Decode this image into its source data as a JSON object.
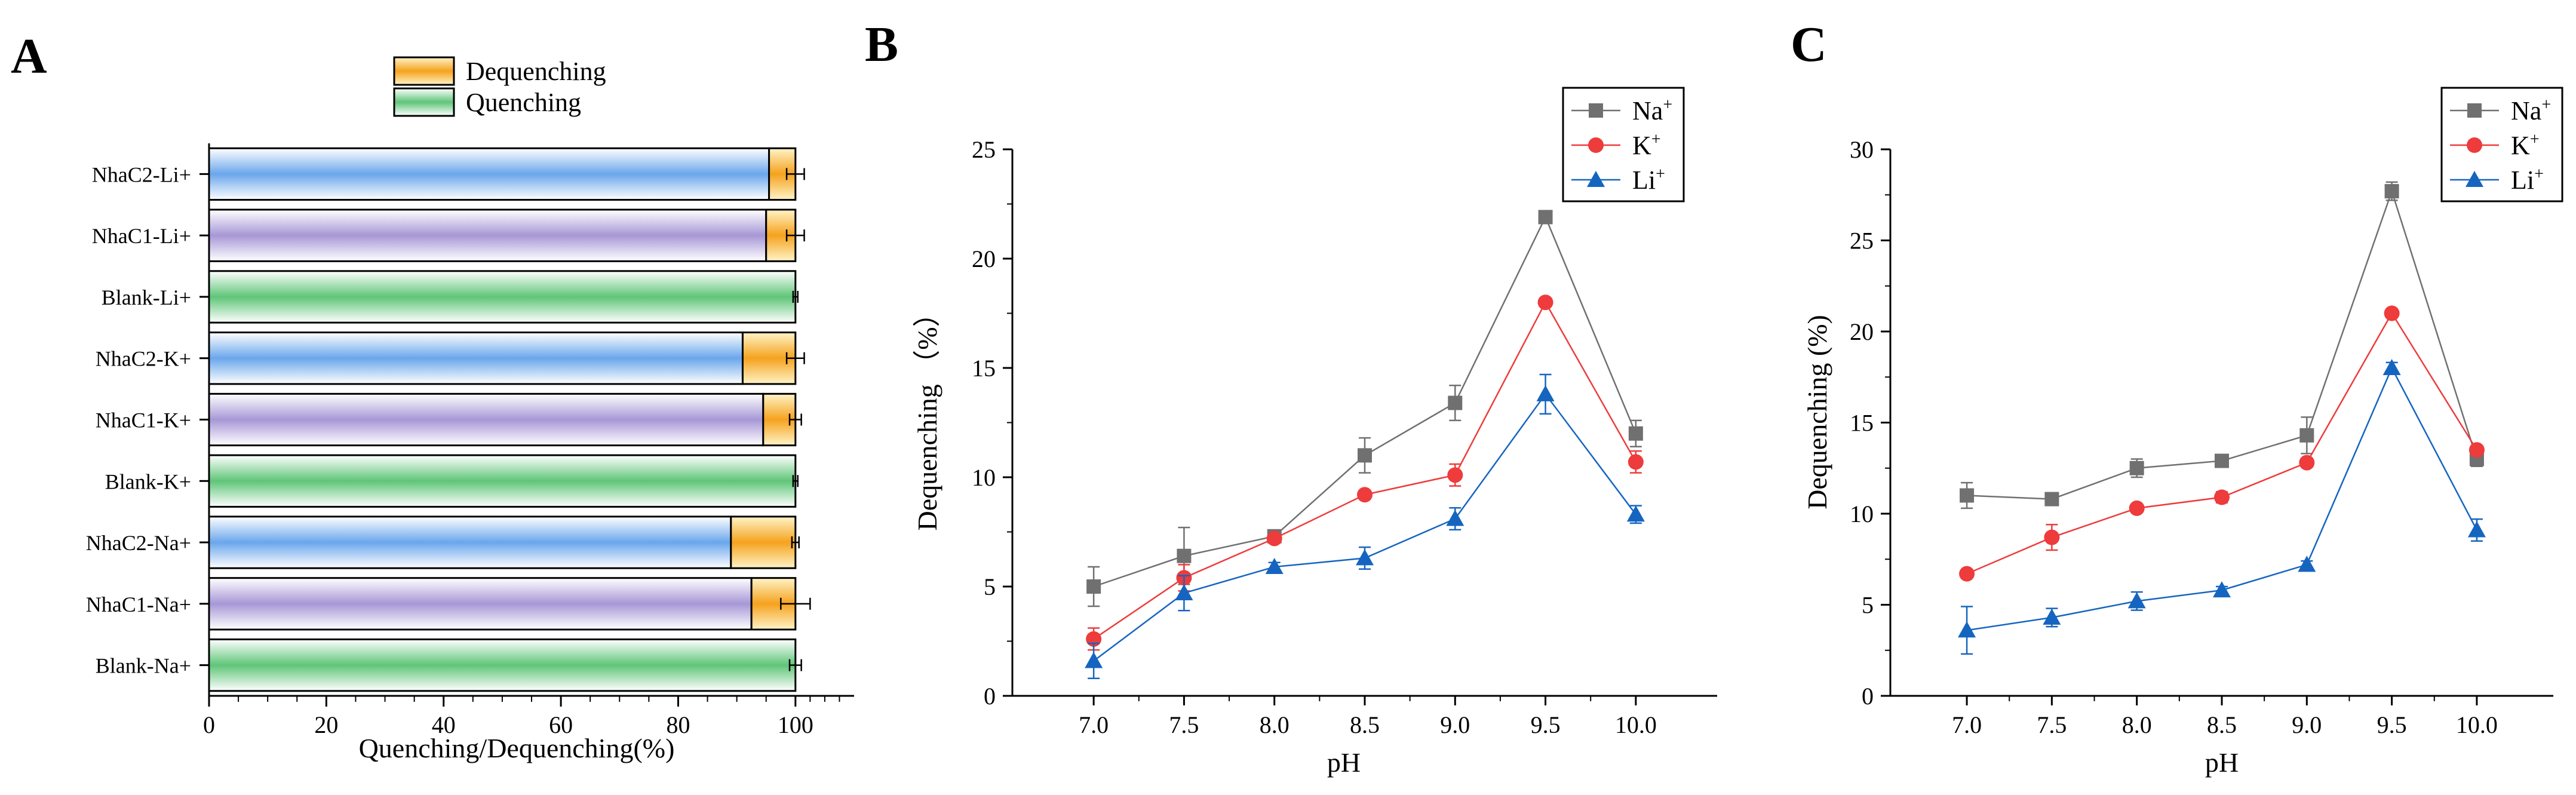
{
  "chart_data": [
    {
      "panel": "A",
      "type": "bar",
      "orientation": "horizontal",
      "stacked": true,
      "xlabel": "Quenching/Dequenching(%)",
      "xlim": [
        0,
        110
      ],
      "xticks": [
        0,
        20,
        40,
        60,
        80,
        100
      ],
      "categories": [
        "NhaC2-Li+",
        "NhaC1-Li+",
        "Blank-Li+",
        "NhaC2-K+",
        "NhaC1-K+",
        "Blank-K+",
        "NhaC2-Na+",
        "NhaC1-Na+",
        "Blank-Na+"
      ],
      "legend": [
        "Dequenching",
        "Quenching"
      ],
      "series": [
        {
          "name": "Quenching",
          "values": [
            95.5,
            95,
            100,
            91,
            94.5,
            100,
            89,
            92.5,
            100
          ]
        },
        {
          "name": "Dequenching",
          "values": [
            4.5,
            5,
            0,
            9,
            5.5,
            0,
            11,
            7.5,
            0
          ]
        }
      ],
      "errors": [
        1.5,
        1.5,
        0.4,
        1.5,
        1.0,
        0.4,
        0.6,
        2.5,
        1.0
      ],
      "colors": {
        "quenching_gradient": [
          "#ffffff",
          "#5fc578"
        ],
        "dequenching_gradient": [
          "#fff4c8",
          "#f5a21e"
        ],
        "blue_gradient": [
          "#ffffff",
          "#6aa6ec"
        ],
        "purple_gradient": [
          "#ffffff",
          "#a797d6"
        ]
      }
    },
    {
      "panel": "B",
      "type": "line",
      "xlabel": "pH",
      "ylabel": "Dequenching （%）",
      "x": [
        7.0,
        7.5,
        8.0,
        8.5,
        9.0,
        9.5,
        10.0
      ],
      "xtick_labels": [
        "7.0",
        "7.5",
        "8.0",
        "8.5",
        "9.0",
        "9.5",
        "10.0"
      ],
      "xlim": [
        6.55,
        10.45
      ],
      "ylim": [
        0,
        25
      ],
      "yticks": [
        0,
        5,
        10,
        15,
        20,
        25
      ],
      "series": [
        {
          "name": "Na+",
          "label_base": "Na",
          "label_sup": "+",
          "marker": "square",
          "color": "#707070",
          "values": [
            5.0,
            6.4,
            7.3,
            11.0,
            13.4,
            21.9,
            12.0
          ],
          "errors": [
            0.9,
            1.3,
            0.2,
            0.8,
            0.8,
            0.2,
            0.6
          ]
        },
        {
          "name": "K+",
          "label_base": "K",
          "label_sup": "+",
          "marker": "circle",
          "color": "#ee3b3b",
          "values": [
            2.6,
            5.4,
            7.2,
            9.2,
            10.1,
            18.0,
            10.7
          ],
          "errors": [
            0.5,
            0.6,
            0.2,
            0.2,
            0.5,
            0.2,
            0.5
          ]
        },
        {
          "name": "Li+",
          "label_base": "Li",
          "label_sup": "+",
          "marker": "triangle",
          "color": "#1565c0",
          "values": [
            1.6,
            4.7,
            5.9,
            6.3,
            8.1,
            13.8,
            8.3
          ],
          "errors": [
            0.8,
            0.8,
            0.2,
            0.5,
            0.5,
            0.9,
            0.4
          ]
        }
      ]
    },
    {
      "panel": "C",
      "type": "line",
      "xlabel": "pH",
      "ylabel": "Dequenching (%)",
      "x": [
        7.0,
        7.5,
        8.0,
        8.5,
        9.0,
        9.5,
        10.0
      ],
      "xtick_labels": [
        "7.0",
        "7.5",
        "8.0",
        "8.5",
        "9.0",
        "9.5",
        "10.0"
      ],
      "xlim": [
        6.55,
        10.45
      ],
      "ylim": [
        0,
        30
      ],
      "yticks": [
        0,
        5,
        10,
        15,
        20,
        25,
        30
      ],
      "series": [
        {
          "name": "Na+",
          "label_base": "Na",
          "label_sup": "+",
          "marker": "square",
          "color": "#707070",
          "values": [
            11.0,
            10.8,
            12.5,
            12.9,
            14.3,
            27.7,
            13.0
          ],
          "errors": [
            0.7,
            0.2,
            0.5,
            0.2,
            1.0,
            0.5,
            0.4
          ]
        },
        {
          "name": "K+",
          "label_base": "K",
          "label_sup": "+",
          "marker": "circle",
          "color": "#ee3b3b",
          "values": [
            6.7,
            8.7,
            10.3,
            10.9,
            12.8,
            21.0,
            13.5
          ],
          "errors": [
            0.2,
            0.7,
            0.2,
            0.3,
            0.2,
            0.2,
            0.2
          ]
        },
        {
          "name": "Li+",
          "label_base": "Li",
          "label_sup": "+",
          "marker": "triangle",
          "color": "#1565c0",
          "values": [
            3.6,
            4.3,
            5.2,
            5.8,
            7.2,
            18.0,
            9.1
          ],
          "errors": [
            1.3,
            0.5,
            0.5,
            0.2,
            0.2,
            0.3,
            0.6
          ]
        }
      ]
    }
  ],
  "panel_labels": [
    "A",
    "B",
    "C"
  ]
}
